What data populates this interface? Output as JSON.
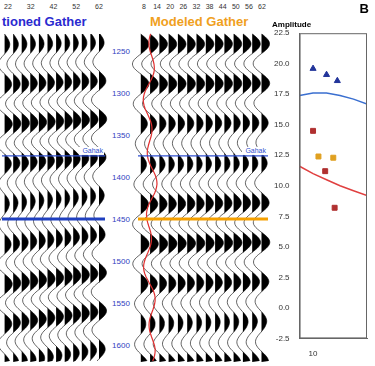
{
  "gathers": {
    "depth_axis": {
      "range": [
        1230,
        1620
      ],
      "ticks": [
        1250,
        1300,
        1350,
        1400,
        1450,
        1500,
        1550,
        1600
      ],
      "color": "#3040c0"
    },
    "horizons": [
      {
        "label": "Gahak",
        "depth": 1375,
        "color": "#3050d0"
      }
    ],
    "panels": [
      {
        "title": "tioned Gather",
        "title_color": "#2a2ad0",
        "trace_ticks": [
          22,
          32,
          42,
          52,
          62
        ],
        "marker_depth": 1450,
        "marker_color": "#1f3fbf"
      },
      {
        "title": "Modeled Gather",
        "title_color": "#f0a020",
        "trace_ticks": [
          8,
          14,
          20,
          26,
          32,
          38,
          44,
          50,
          56,
          62
        ],
        "marker_depth": 1450,
        "marker_color": "#f5a000"
      }
    ]
  },
  "chart_data": {
    "type": "scatter",
    "title": "B",
    "y_label": "Amplitude",
    "xlim": [
      9,
      14
    ],
    "xticks": [
      10
    ],
    "ylim": [
      -2.5,
      22.5
    ],
    "yticks": [
      {
        "value": -2.5,
        "label": "-2.5"
      },
      {
        "value": 0,
        "label": "0.0"
      },
      {
        "value": 2.5,
        "label": "2.5"
      },
      {
        "value": 5,
        "label": "5.0"
      },
      {
        "value": 7.5,
        "label": "7.5"
      },
      {
        "value": 10,
        "label": "10.0"
      },
      {
        "value": 12.5,
        "label": "12.5"
      },
      {
        "value": 15,
        "label": "15.0"
      },
      {
        "value": 17.5,
        "label": "17.5"
      },
      {
        "value": 20,
        "label": "20.0"
      },
      {
        "value": 22.5,
        "label": "22.5"
      }
    ],
    "grid": false,
    "series": [
      {
        "color": "#22349a",
        "marker": "triangle",
        "x": [
          10.0,
          11.0,
          11.8
        ],
        "values": [
          19.6,
          19.1,
          18.6
        ]
      },
      {
        "color": "#3a6fd0",
        "line_style": "solid",
        "x": [
          9,
          10,
          11,
          12,
          13,
          14
        ],
        "values": [
          17.4,
          17.6,
          17.6,
          17.4,
          17.1,
          16.7
        ]
      },
      {
        "color": "#b03030",
        "marker": "square",
        "x": [
          10.0,
          10.9,
          11.6
        ],
        "values": [
          14.5,
          11.2,
          8.2
        ]
      },
      {
        "color": "#e0a020",
        "marker": "square",
        "x": [
          10.4,
          11.5
        ],
        "values": [
          12.4,
          12.3
        ]
      },
      {
        "color": "#e04040",
        "line_style": "solid",
        "x": [
          9,
          10,
          11,
          12,
          13,
          14
        ],
        "values": [
          11.6,
          11.0,
          10.5,
          10.0,
          9.6,
          9.2
        ]
      }
    ]
  }
}
